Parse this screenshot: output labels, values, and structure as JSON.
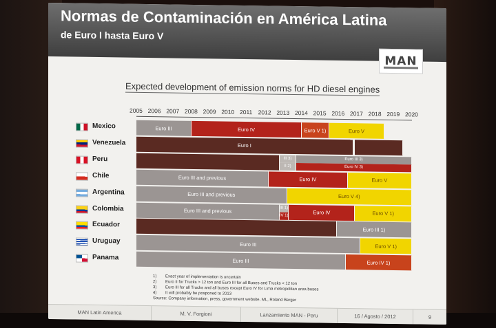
{
  "header": {
    "title": "Normas de Contaminación en América Latina",
    "subtitle": "de Euro I hasta Euro V",
    "logo": "MAN"
  },
  "chart_title": "Expected development of emission norms for HD diesel engines",
  "years": [
    "2005",
    "2006",
    "2007",
    "2008",
    "2009",
    "2010",
    "2011",
    "2012",
    "2013",
    "2014",
    "2015",
    "2016",
    "2017",
    "2018",
    "2019",
    "2020"
  ],
  "colors": {
    "dark": "#5a2a22",
    "gray": "#9b9593",
    "red": "#b3231b",
    "orange_red": "#c8431c",
    "yellow": "#f1d500",
    "light_gray": "#bdb8b4"
  },
  "chart_data": {
    "type": "timeline",
    "x_range": [
      2005,
      2020
    ],
    "rows": [
      {
        "country": "Mexico",
        "flag": "mexico-flag",
        "segments": [
          {
            "label": "Euro III",
            "start": 2005,
            "end": 2008,
            "color": "gray"
          },
          {
            "label": "Euro IV",
            "start": 2008,
            "end": 2014,
            "color": "red"
          },
          {
            "label": "Euro V 1)",
            "start": 2014,
            "end": 2015.5,
            "color": "orange_red"
          },
          {
            "label": "Euro V",
            "start": 2015.5,
            "end": 2018.5,
            "color": "yellow"
          }
        ]
      },
      {
        "country": "Venezuela",
        "flag": "venezuela-flag",
        "segments": [
          {
            "label": "Euro I",
            "start": 2005,
            "end": 2016.8,
            "color": "dark"
          },
          {
            "label": "",
            "start": 2016.9,
            "end": 2019.5,
            "color": "dark"
          }
        ]
      },
      {
        "country": "Peru",
        "flag": "peru-flag",
        "segments": [
          {
            "label": "",
            "start": 2005,
            "end": 2012.8,
            "color": "dark"
          },
          {
            "label": "III 3)",
            "start": 2012.8,
            "end": 2013.7,
            "color": "light_gray",
            "half": "top"
          },
          {
            "label": "II 2)",
            "start": 2012.8,
            "end": 2013.7,
            "color": "light_gray",
            "half": "bottom"
          },
          {
            "label": "Euro III 3)",
            "start": 2013.7,
            "end": 2020,
            "color": "gray",
            "half": "top"
          },
          {
            "label": "Euro IV 3)",
            "start": 2013.7,
            "end": 2020,
            "color": "red",
            "half": "bottom"
          }
        ]
      },
      {
        "country": "Chile",
        "flag": "chile-flag",
        "segments": [
          {
            "label": "Euro III and previous",
            "start": 2005,
            "end": 2012.2,
            "color": "gray"
          },
          {
            "label": "Euro IV",
            "start": 2012.2,
            "end": 2016.5,
            "color": "red"
          },
          {
            "label": "Euro V",
            "start": 2016.5,
            "end": 2020,
            "color": "yellow"
          }
        ]
      },
      {
        "country": "Argentina",
        "flag": "argentina-flag",
        "segments": [
          {
            "label": "Euro III and previous",
            "start": 2005,
            "end": 2013.2,
            "color": "gray"
          },
          {
            "label": "Euro V 4)",
            "start": 2013.2,
            "end": 2020,
            "color": "yellow"
          }
        ]
      },
      {
        "country": "Colombia",
        "flag": "colombia-flag",
        "segments": [
          {
            "label": "Euro III and previous",
            "start": 2005,
            "end": 2012.8,
            "color": "gray"
          },
          {
            "label": "III 1)",
            "start": 2012.8,
            "end": 2013.3,
            "color": "light_gray",
            "half": "top"
          },
          {
            "label": "IV 1)",
            "start": 2012.8,
            "end": 2013.3,
            "color": "red",
            "half": "bottom"
          },
          {
            "label": "Euro IV",
            "start": 2013.3,
            "end": 2016.9,
            "color": "red"
          },
          {
            "label": "Euro V 1)",
            "start": 2016.9,
            "end": 2020,
            "color": "yellow"
          }
        ]
      },
      {
        "country": "Ecuador",
        "flag": "ecuador-flag",
        "segments": [
          {
            "label": "",
            "start": 2005,
            "end": 2015.9,
            "color": "dark"
          },
          {
            "label": "Euro III 1)",
            "start": 2015.9,
            "end": 2020,
            "color": "gray"
          }
        ]
      },
      {
        "country": "Uruguay",
        "flag": "uruguay-flag",
        "segments": [
          {
            "label": "Euro III",
            "start": 2005,
            "end": 2017.2,
            "color": "gray"
          },
          {
            "label": "Euro V 1)",
            "start": 2017.2,
            "end": 2020,
            "color": "yellow"
          }
        ]
      },
      {
        "country": "Panama",
        "flag": "panama-flag",
        "segments": [
          {
            "label": "Euro III",
            "start": 2005,
            "end": 2016.4,
            "color": "gray"
          },
          {
            "label": "Euro IV 1)",
            "start": 2016.4,
            "end": 2020,
            "color": "orange_red"
          }
        ]
      }
    ]
  },
  "footnotes": [
    {
      "num": "1)",
      "text": "Exact year of implementation is uncertain"
    },
    {
      "num": "2)",
      "text": "Euro II for Trucks > 12 ton and Euro III for all Buses and Trucks < 12 ton"
    },
    {
      "num": "3)",
      "text": "Euro III for all Trucks and all buses except Euro IV for Lima metropolitan area buses"
    },
    {
      "num": "4)",
      "text": "It will probably be posponed to 2013"
    }
  ],
  "source": "Source: Company information, press, government website, ML, Roland Berger",
  "footer": {
    "company": "MAN Latin America",
    "author": "M. V. Forgioni",
    "event": "Lanzamiento MAN - Peru",
    "date": "16 / Agosto / 2012",
    "page": "9"
  }
}
